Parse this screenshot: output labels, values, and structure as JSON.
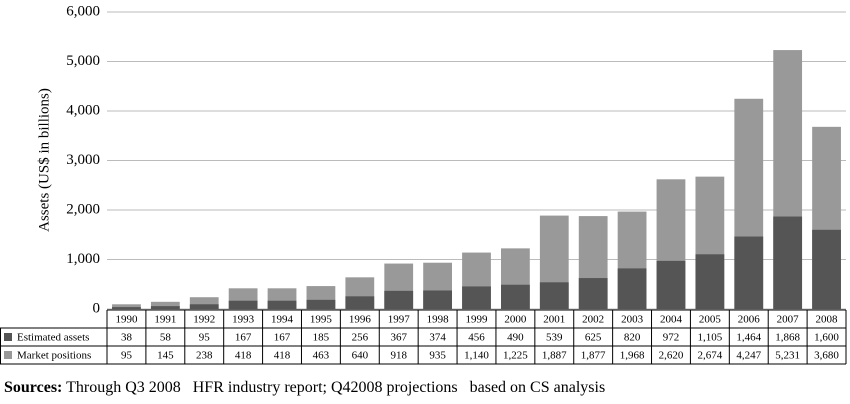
{
  "chart_data": {
    "type": "bar",
    "y_label": "Assets (US$ in billions)",
    "categories": [
      "1990",
      "1991",
      "1992",
      "1993",
      "1994",
      "1995",
      "1996",
      "1997",
      "1998",
      "1999",
      "2000",
      "2001",
      "2002",
      "2003",
      "2004",
      "2005",
      "2006",
      "2007",
      "2008"
    ],
    "series": [
      {
        "name": "Estimated assets",
        "color": "#555555",
        "values": [
          38,
          58,
          95,
          167,
          167,
          185,
          256,
          367,
          374,
          456,
          490,
          539,
          625,
          820,
          972,
          1105,
          1464,
          1868,
          1600
        ],
        "value_labels": [
          "38",
          "58",
          "95",
          "167",
          "167",
          "185",
          "256",
          "367",
          "374",
          "456",
          "490",
          "539",
          "625",
          "820",
          "972",
          "1,105",
          "1,464",
          "1,868",
          "1,600"
        ]
      },
      {
        "name": "Market positions",
        "color": "#999999",
        "values": [
          95,
          145,
          238,
          418,
          418,
          463,
          640,
          918,
          935,
          1140,
          1225,
          1887,
          1877,
          1968,
          2620,
          2674,
          4247,
          5231,
          3680
        ],
        "value_labels": [
          "95",
          "145",
          "238",
          "418",
          "418",
          "463",
          "640",
          "918",
          "935",
          "1,140",
          "1,225",
          "1,887",
          "1,877",
          "1,968",
          "2,620",
          "2,674",
          "4,247",
          "5,231",
          "3,680"
        ]
      }
    ],
    "ylim": [
      0,
      6000
    ],
    "yticks": [
      0,
      {
        "value": 1000,
        "label": "1,000"
      },
      {
        "value": 2000,
        "label": "2,000"
      },
      {
        "value": 3000,
        "label": "3,000"
      },
      {
        "value": 4000,
        "label": "4,000"
      },
      {
        "value": 5000,
        "label": "5,000"
      },
      {
        "value": 6000,
        "label": "6,000"
      }
    ],
    "grid": true,
    "source_label": "Sources:",
    "source_text": "Through Q3 2008   HFR industry report; Q42008 projections   based on CS analysis"
  }
}
